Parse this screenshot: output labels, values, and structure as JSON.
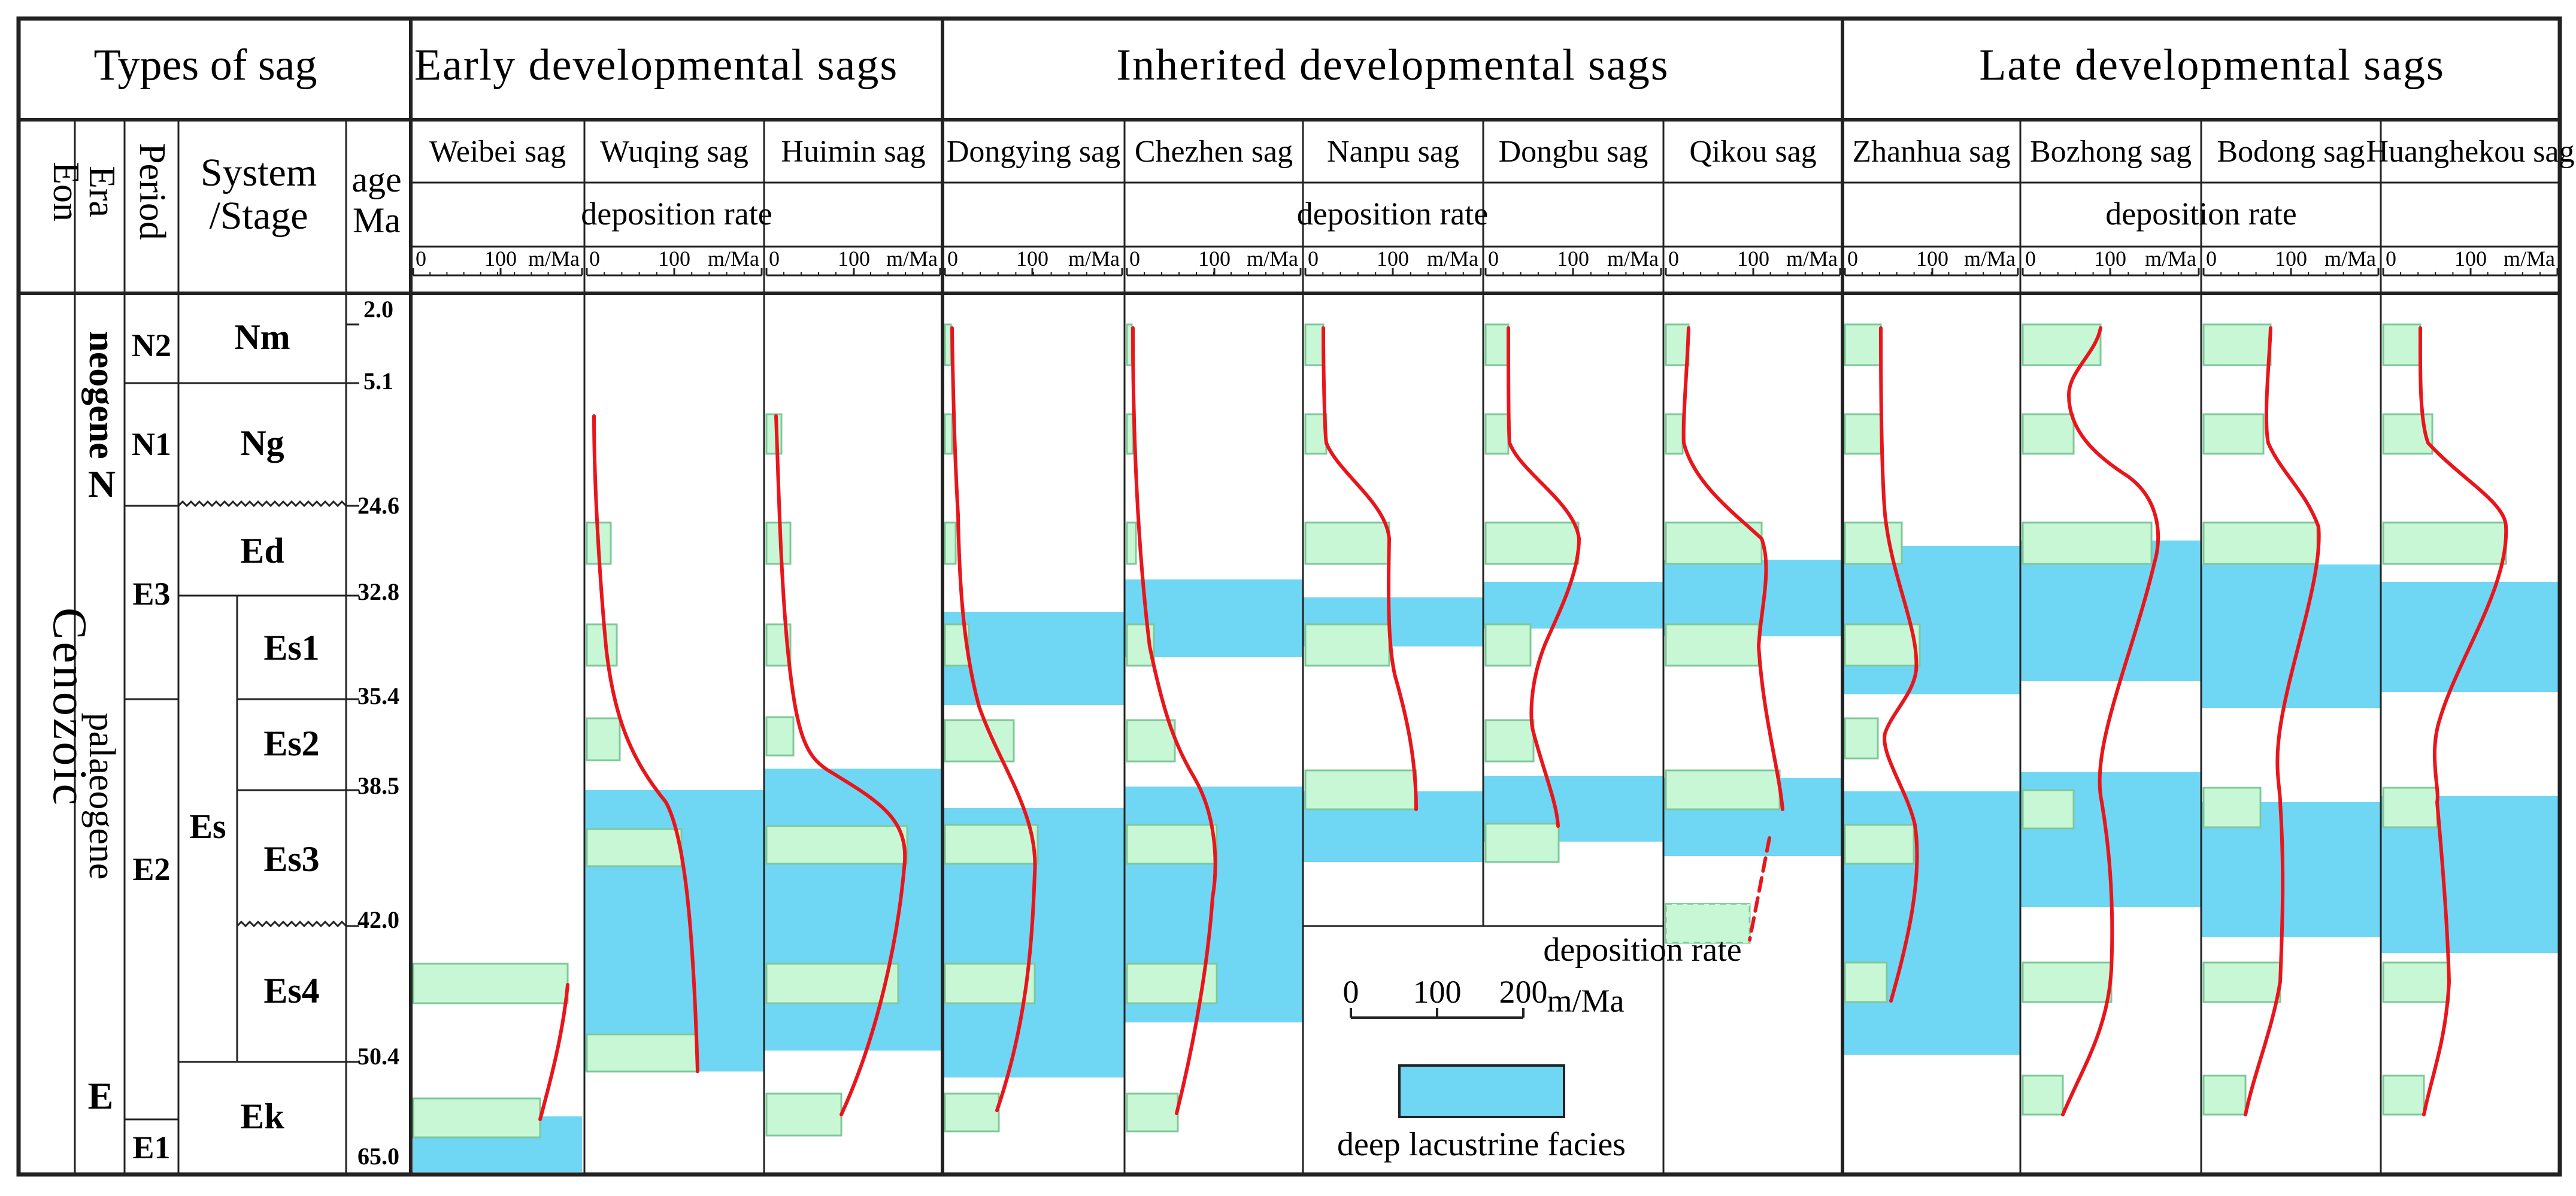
{
  "header": {
    "types_of_sag": "Types of sag",
    "groups": [
      "Early developmental sags",
      "Inherited developmental sags",
      "Late developmental sags"
    ],
    "eon": "Eon",
    "era": "Era",
    "period": "Period",
    "system_stage": "System/Stage",
    "age": "age Ma",
    "deposition_rate": "deposition rate",
    "scale_zero": "0",
    "scale_hundred": "100",
    "scale_unit": "m/Ma"
  },
  "strat": {
    "eon": "Cenozoic",
    "eras": [
      "neogene",
      "N",
      "palaeogene",
      "E"
    ],
    "periods": [
      "N2",
      "N1",
      "E3",
      "E2",
      "E1"
    ],
    "series": [
      "Es"
    ],
    "stages": [
      "Nm",
      "Ng",
      "Ed",
      "Es1",
      "Es2",
      "Es3",
      "Es4",
      "Ek"
    ],
    "ages": [
      "2.0",
      "5.1",
      "24.6",
      "32.8",
      "35.4",
      "38.5",
      "42.0",
      "50.4",
      "65.0"
    ]
  },
  "sags": [
    {
      "name": "Weibei sag",
      "group": "Early developmental sags",
      "deep_lacustrine": [
        "Ek"
      ]
    },
    {
      "name": "Wuqing sag",
      "group": "Early developmental sags",
      "deep_lacustrine": [
        "Es3",
        "Es4"
      ]
    },
    {
      "name": "Huimin sag",
      "group": "Early developmental sags",
      "deep_lacustrine": [
        "Es2",
        "Es3",
        "Es4"
      ]
    },
    {
      "name": "Dongying sag",
      "group": "Inherited developmental sags",
      "deep_lacustrine": [
        "Es1",
        "Es3",
        "Es4"
      ]
    },
    {
      "name": "Chezhen sag",
      "group": "Inherited developmental sags",
      "deep_lacustrine": [
        "Ed",
        "Es1",
        "Es3",
        "Es4"
      ]
    },
    {
      "name": "Nanpu sag",
      "group": "Inherited developmental sags",
      "deep_lacustrine": [
        "Ed",
        "Es1",
        "Es3"
      ]
    },
    {
      "name": "Dongbu sag",
      "group": "Inherited developmental sags",
      "deep_lacustrine": [
        "Ed",
        "Es1",
        "Es3"
      ]
    },
    {
      "name": "Qikou sag",
      "group": "Inherited developmental sags",
      "deep_lacustrine": [
        "Ed",
        "Es1",
        "Es3"
      ]
    },
    {
      "name": "Zhanhua sag",
      "group": "Late developmental sags",
      "deep_lacustrine": [
        "Ed",
        "Es1",
        "Es3",
        "Es4"
      ]
    },
    {
      "name": "Bozhong sag",
      "group": "Late developmental sags",
      "deep_lacustrine": [
        "Ed",
        "Es1",
        "Es2",
        "Es3"
      ]
    },
    {
      "name": "Bodong sag",
      "group": "Late developmental sags",
      "deep_lacustrine": [
        "Ed",
        "Es1",
        "Es2",
        "Es3"
      ]
    },
    {
      "name": "Huanghekou sag",
      "group": "Late developmental sags",
      "deep_lacustrine": [
        "Ed",
        "Es1",
        "Es3"
      ]
    }
  ],
  "legend": {
    "title": "deposition rate",
    "ticks": [
      "0",
      "100",
      "200"
    ],
    "unit": "m/Ma",
    "facies_label": "deep lacustrine facies"
  },
  "colors": {
    "deep_lacustrine": "#6fd6f3",
    "sample_box": "#c8f7d6",
    "sample_border": "#7fc89a",
    "curve": "#e8161c",
    "frame": "#222222"
  }
}
